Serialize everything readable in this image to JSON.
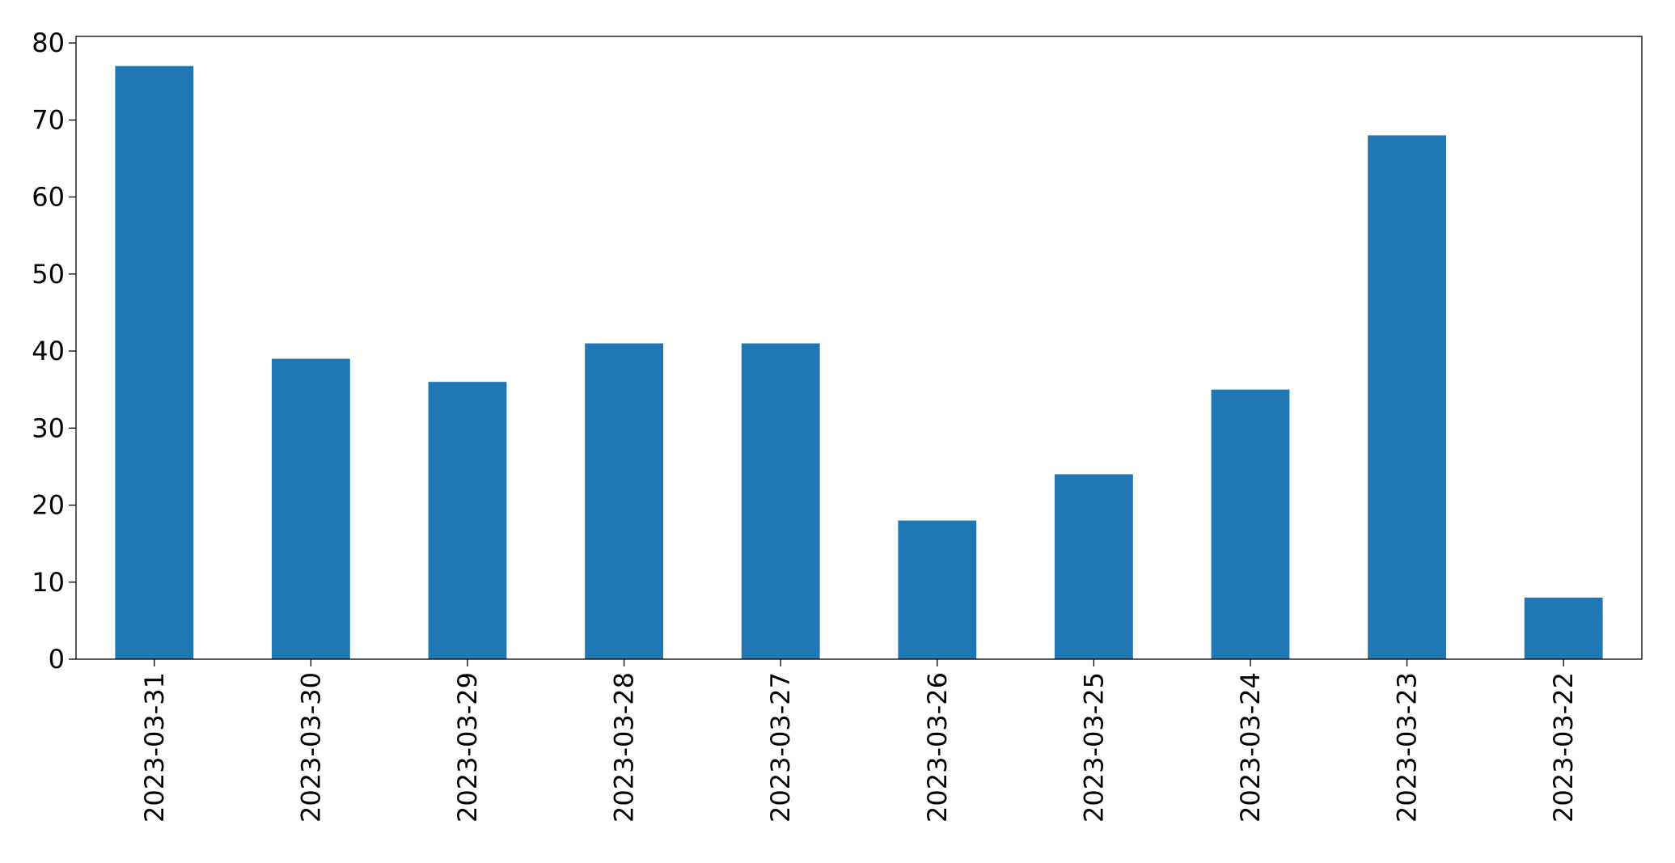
{
  "chart_data": {
    "type": "bar",
    "categories": [
      "2023-03-31",
      "2023-03-30",
      "2023-03-29",
      "2023-03-28",
      "2023-03-27",
      "2023-03-26",
      "2023-03-25",
      "2023-03-24",
      "2023-03-23",
      "2023-03-22"
    ],
    "values": [
      77,
      39,
      36,
      41,
      41,
      18,
      24,
      35,
      68,
      8
    ],
    "color": "#1f77b4",
    "ylim": [
      0,
      80.85
    ],
    "yticks": [
      0,
      10,
      20,
      30,
      40,
      50,
      60,
      70,
      80
    ],
    "grid": false
  }
}
